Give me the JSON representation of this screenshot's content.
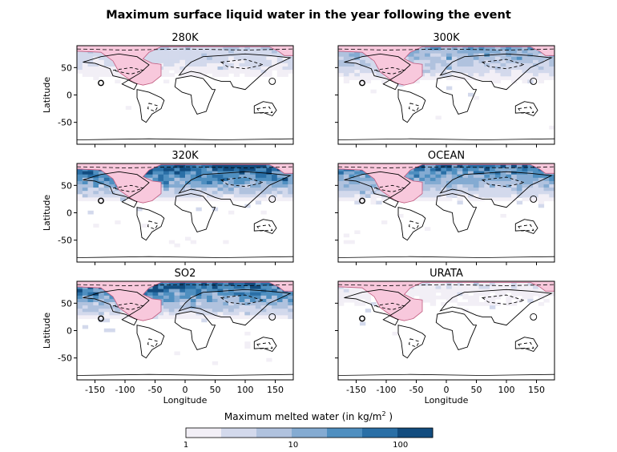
{
  "chart_data": {
    "type": "heatmap",
    "title": "Maximum surface liquid water in the year following the event",
    "panels": [
      {
        "label": "280K",
        "intensity": 0.3
      },
      {
        "label": "300K",
        "intensity": 0.55
      },
      {
        "label": "320K",
        "intensity": 1.0
      },
      {
        "label": "OCEAN",
        "intensity": 0.85
      },
      {
        "label": "SO2",
        "intensity": 0.95
      },
      {
        "label": "URATA",
        "intensity": 0.15
      }
    ],
    "xlabel": "Longitude",
    "ylabel": "Latitude",
    "xlim": [
      -180,
      180
    ],
    "ylim": [
      -90,
      90
    ],
    "xticks": [
      -150,
      -100,
      -50,
      0,
      50,
      100,
      150
    ],
    "yticks": [
      -50,
      0,
      50
    ],
    "colorbar": {
      "label": "Maximum melted water (in kg/m",
      "label_sup": "2",
      "label_end": " )",
      "scale": "log",
      "range": [
        1,
        200
      ],
      "tick_labels": [
        "1",
        "10",
        "100"
      ],
      "colors": [
        "#f2eff6",
        "#d3d9ec",
        "#b0c2de",
        "#84abd2",
        "#4f8fc0",
        "#2a6fa6",
        "#124c7f"
      ]
    },
    "overlay_color": "#f8c8dc"
  }
}
